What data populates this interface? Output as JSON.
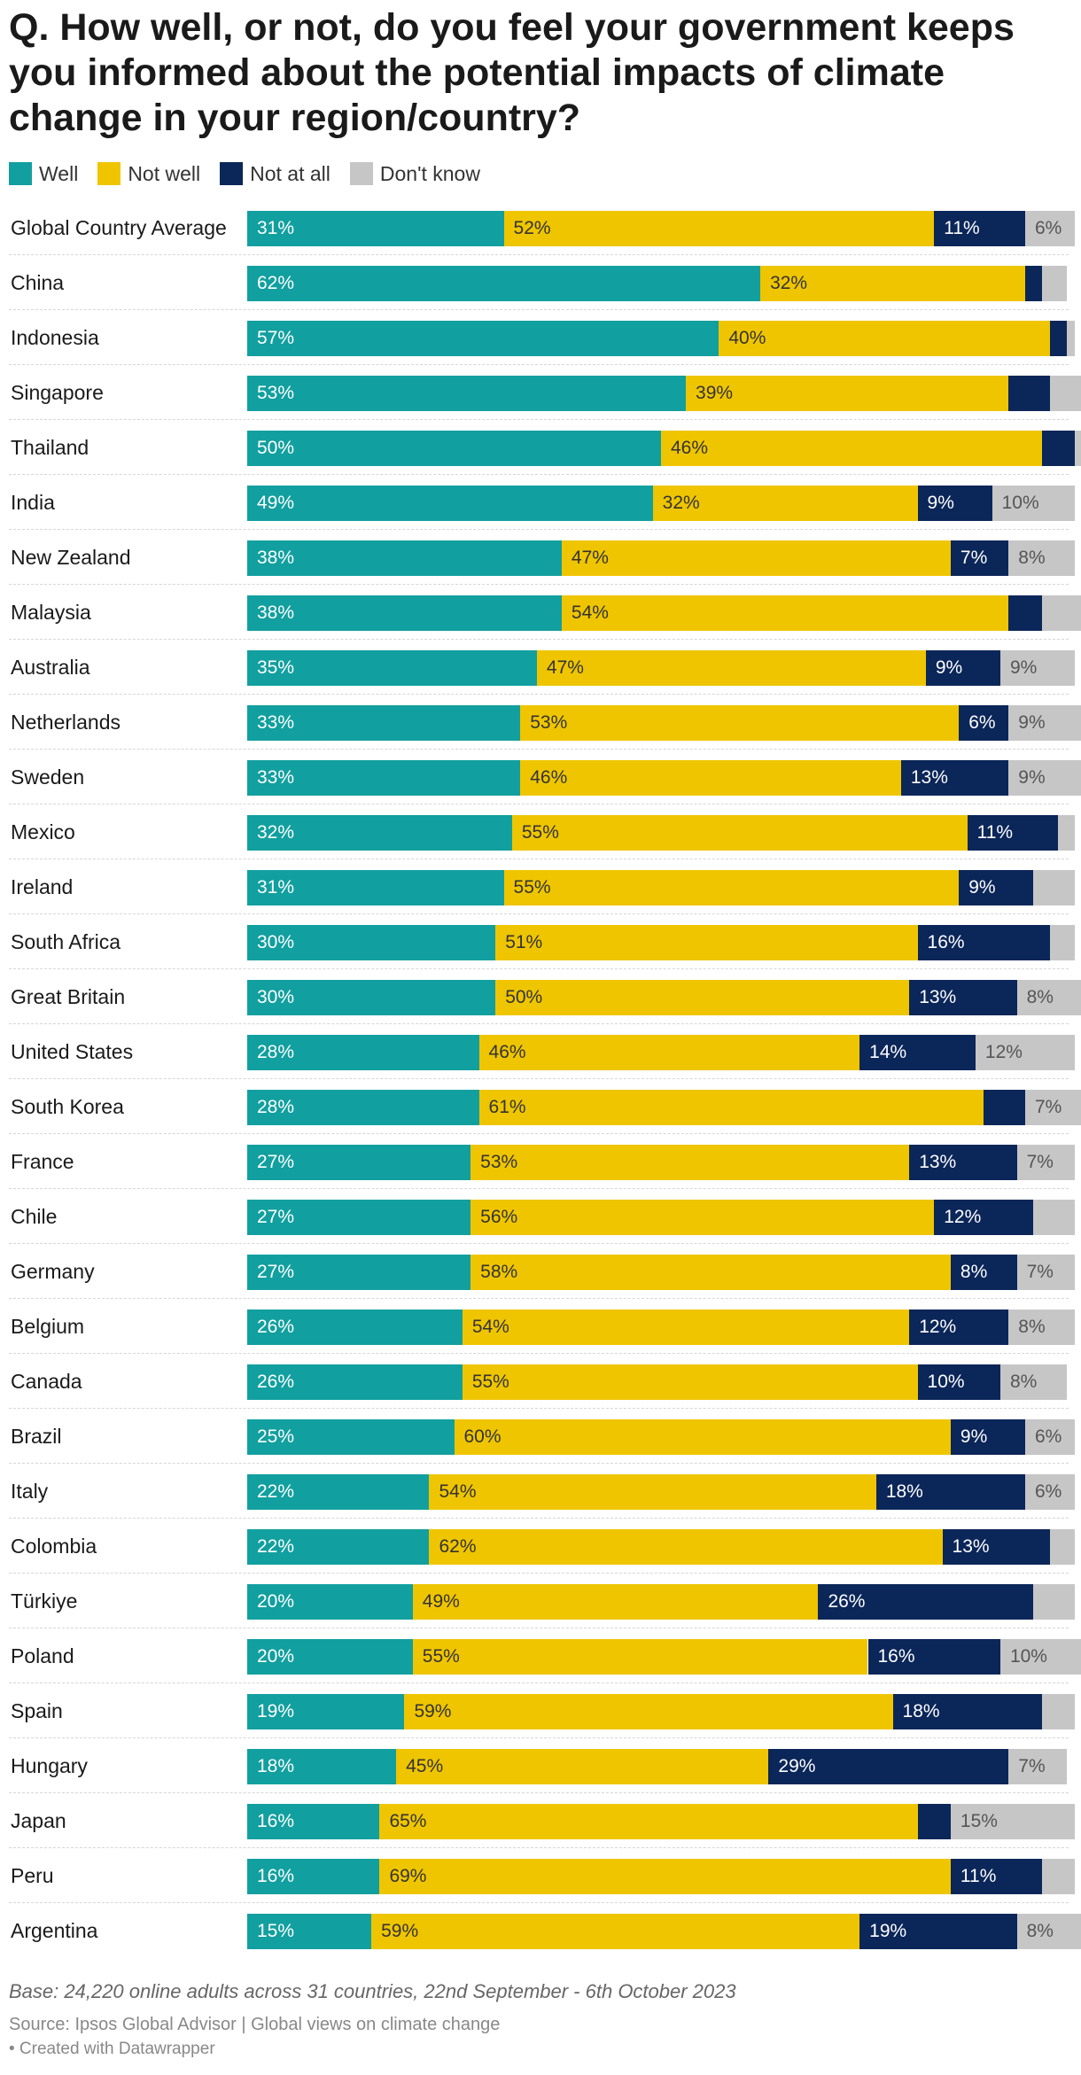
{
  "title": "Q. How well, or not, do you feel your government keeps you informed about the potential impacts of climate change in your region/country?",
  "colors": {
    "well": "#129f9f",
    "not_well": "#efc500",
    "not_at_all": "#0b2659",
    "dont_know": "#c6c6c6"
  },
  "legend": [
    "Well",
    "Not well",
    "Not at all",
    "Don't know"
  ],
  "chart_data": {
    "type": "bar",
    "orientation": "horizontal",
    "stacked": true,
    "title": "Q. How well, or not, do you feel your government keeps you informed about the potential impacts of climate change in your region/country?",
    "categories": [
      "Global Country Average",
      "China",
      "Indonesia",
      "Singapore",
      "Thailand",
      "India",
      "New Zealand",
      "Malaysia",
      "Australia",
      "Netherlands",
      "Sweden",
      "Mexico",
      "Ireland",
      "South Africa",
      "Great Britain",
      "United States",
      "South Korea",
      "France",
      "Chile",
      "Germany",
      "Belgium",
      "Canada",
      "Brazil",
      "Italy",
      "Colombia",
      "Türkiye",
      "Poland",
      "Spain",
      "Hungary",
      "Japan",
      "Peru",
      "Argentina"
    ],
    "series": [
      {
        "name": "Well",
        "values": [
          31,
          62,
          57,
          53,
          50,
          49,
          38,
          38,
          35,
          33,
          33,
          32,
          31,
          30,
          30,
          28,
          28,
          27,
          27,
          27,
          26,
          26,
          25,
          22,
          22,
          20,
          20,
          19,
          18,
          16,
          16,
          15
        ]
      },
      {
        "name": "Not well",
        "values": [
          52,
          32,
          40,
          39,
          46,
          32,
          47,
          54,
          47,
          53,
          46,
          55,
          55,
          51,
          50,
          46,
          61,
          53,
          56,
          58,
          54,
          55,
          60,
          54,
          62,
          49,
          55,
          59,
          45,
          65,
          69,
          59
        ]
      },
      {
        "name": "Not at all",
        "values": [
          11,
          2,
          2,
          5,
          4,
          9,
          7,
          4,
          9,
          6,
          13,
          11,
          9,
          16,
          13,
          14,
          5,
          13,
          12,
          8,
          12,
          10,
          9,
          18,
          13,
          26,
          16,
          18,
          29,
          4,
          11,
          19
        ]
      },
      {
        "name": "Don't know",
        "values": [
          6,
          3,
          1,
          4,
          1,
          10,
          8,
          5,
          9,
          9,
          9,
          2,
          5,
          3,
          8,
          12,
          7,
          7,
          5,
          7,
          8,
          8,
          6,
          6,
          3,
          5,
          10,
          4,
          7,
          15,
          4,
          8
        ]
      }
    ],
    "xlim": [
      0,
      100
    ],
    "value_labels": [
      [
        "31%",
        "52%",
        "11%",
        "6%"
      ],
      [
        "62%",
        "32%",
        "",
        ""
      ],
      [
        "57%",
        "40%",
        "",
        ""
      ],
      [
        "53%",
        "39%",
        "",
        ""
      ],
      [
        "50%",
        "46%",
        "",
        ""
      ],
      [
        "49%",
        "32%",
        "9%",
        "10%"
      ],
      [
        "38%",
        "47%",
        "7%",
        "8%"
      ],
      [
        "38%",
        "54%",
        "",
        ""
      ],
      [
        "35%",
        "47%",
        "9%",
        "9%"
      ],
      [
        "33%",
        "53%",
        "6%",
        "9%"
      ],
      [
        "33%",
        "46%",
        "13%",
        "9%"
      ],
      [
        "32%",
        "55%",
        "11%",
        ""
      ],
      [
        "31%",
        "55%",
        "9%",
        ""
      ],
      [
        "30%",
        "51%",
        "16%",
        ""
      ],
      [
        "30%",
        "50%",
        "13%",
        "8%"
      ],
      [
        "28%",
        "46%",
        "14%",
        "12%"
      ],
      [
        "28%",
        "61%",
        "",
        "7%"
      ],
      [
        "27%",
        "53%",
        "13%",
        "7%"
      ],
      [
        "27%",
        "56%",
        "12%",
        ""
      ],
      [
        "27%",
        "58%",
        "8%",
        "7%"
      ],
      [
        "26%",
        "54%",
        "12%",
        "8%"
      ],
      [
        "26%",
        "55%",
        "10%",
        "8%"
      ],
      [
        "25%",
        "60%",
        "9%",
        "6%"
      ],
      [
        "22%",
        "54%",
        "18%",
        "6%"
      ],
      [
        "22%",
        "62%",
        "13%",
        ""
      ],
      [
        "20%",
        "49%",
        "26%",
        ""
      ],
      [
        "20%",
        "55%",
        "16%",
        "10%"
      ],
      [
        "19%",
        "59%",
        "18%",
        ""
      ],
      [
        "18%",
        "45%",
        "29%",
        "7%"
      ],
      [
        "16%",
        "65%",
        "",
        "15%"
      ],
      [
        "16%",
        "69%",
        "11%",
        ""
      ],
      [
        "15%",
        "59%",
        "19%",
        "8%"
      ]
    ]
  },
  "footer": {
    "note": "Base: 24,220 online adults across 31 countries, 22nd September - 6th October 2023",
    "source": "Source: Ipsos Global Advisor | Global views on climate change",
    "credit": "• Created with Datawrapper"
  }
}
